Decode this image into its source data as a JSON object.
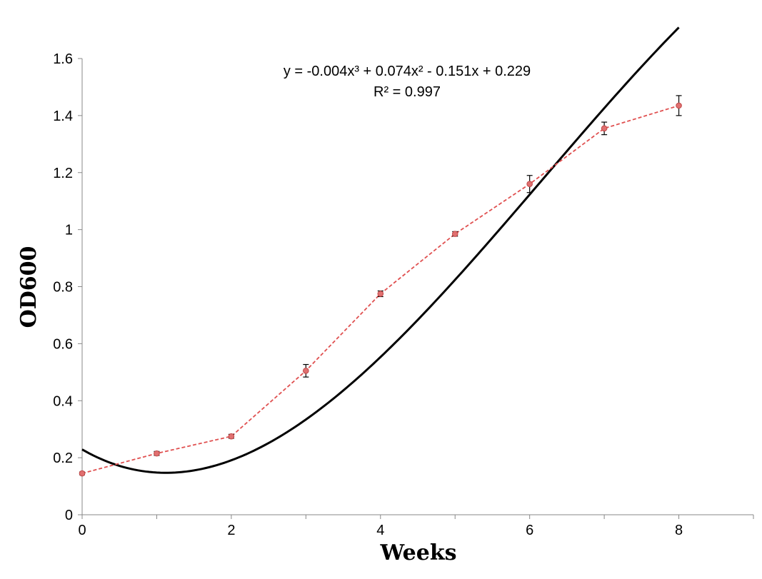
{
  "chart_data": {
    "type": "line",
    "xlabel": "Weeks",
    "ylabel": "OD600",
    "xlim": [
      0,
      9
    ],
    "ylim": [
      0,
      1.6
    ],
    "x_ticks_major": [
      0,
      2,
      4,
      6,
      8
    ],
    "x_ticks_minor": [
      1,
      3,
      5,
      7,
      9
    ],
    "y_ticks": [
      0,
      0.2,
      0.4,
      0.6,
      0.8,
      1,
      1.2,
      1.4,
      1.6
    ],
    "grid": false,
    "series": [
      {
        "style": "dashed-with-markers",
        "color": "#e05050",
        "x": [
          0,
          1,
          2,
          3,
          4,
          5,
          6,
          7,
          8
        ],
        "y": [
          0.145,
          0.215,
          0.275,
          0.505,
          0.775,
          0.985,
          1.16,
          1.355,
          1.435
        ],
        "error": [
          0.005,
          0.007,
          0.007,
          0.022,
          0.01,
          0.008,
          0.03,
          0.022,
          0.035
        ]
      }
    ],
    "trendline": {
      "type": "polynomial-3",
      "color": "#000000",
      "coefficients": [
        -0.004,
        0.074,
        -0.151,
        0.229
      ],
      "equation": "y = -0.004x³ + 0.074x² - 0.151x + 0.229",
      "r_squared": "R² = 0.997"
    }
  }
}
